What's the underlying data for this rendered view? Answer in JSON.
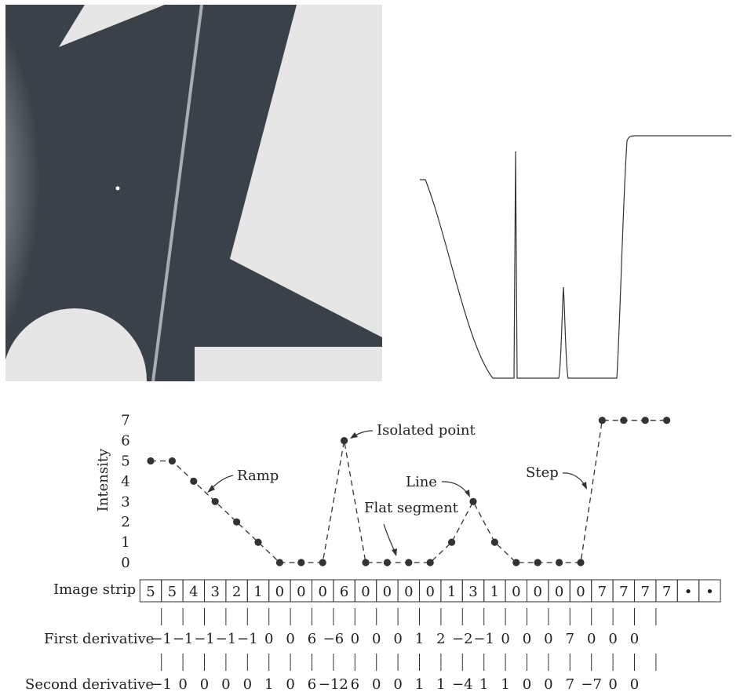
{
  "labels": {
    "y_axis": "Intensity",
    "image_strip": "Image strip",
    "first_derivative": "First derivative",
    "second_derivative": "Second derivative"
  },
  "annotations": {
    "ramp": "Ramp",
    "isolated_point": "Isolated point",
    "line": "Line",
    "flat_segment": "Flat segment",
    "step": "Step"
  },
  "chart_data": {
    "type": "line",
    "ylabel": "Intensity",
    "ylim": [
      0,
      7
    ],
    "yticks": [
      0,
      1,
      2,
      3,
      4,
      5,
      6,
      7
    ],
    "x": [
      0,
      1,
      2,
      3,
      4,
      5,
      6,
      7,
      8,
      9,
      10,
      11,
      12,
      13,
      14,
      15,
      16,
      17,
      18,
      19,
      20,
      21,
      22,
      23,
      24
    ],
    "values": [
      5,
      5,
      4,
      3,
      2,
      1,
      0,
      0,
      0,
      6,
      0,
      0,
      0,
      0,
      1,
      3,
      1,
      0,
      0,
      0,
      0,
      7,
      7,
      7,
      7
    ]
  },
  "image_strip": [
    "5",
    "5",
    "4",
    "3",
    "2",
    "1",
    "0",
    "0",
    "0",
    "6",
    "0",
    "0",
    "0",
    "0",
    "1",
    "3",
    "1",
    "0",
    "0",
    "0",
    "0",
    "7",
    "7",
    "7",
    "7",
    "•",
    "•"
  ],
  "first_derivative": [
    "−1",
    "−1",
    "−1",
    "−1",
    "−1",
    "0",
    "0",
    "6",
    "−6",
    "0",
    "0",
    "0",
    "1",
    "2",
    "−2",
    "−1",
    "0",
    "0",
    "0",
    "7",
    "0",
    "0",
    "0"
  ],
  "second_derivative": [
    "−1",
    "0",
    "0",
    "0",
    "0",
    "1",
    "0",
    "6",
    "−12",
    "6",
    "0",
    "0",
    "1",
    "1",
    "−4",
    "1",
    "1",
    "0",
    "0",
    "7",
    "−7",
    "0",
    "0"
  ],
  "colors": {
    "image_dark": "#3a4148",
    "image_light": "#e6e6e6",
    "points": "#333333",
    "lines": "#333333"
  }
}
